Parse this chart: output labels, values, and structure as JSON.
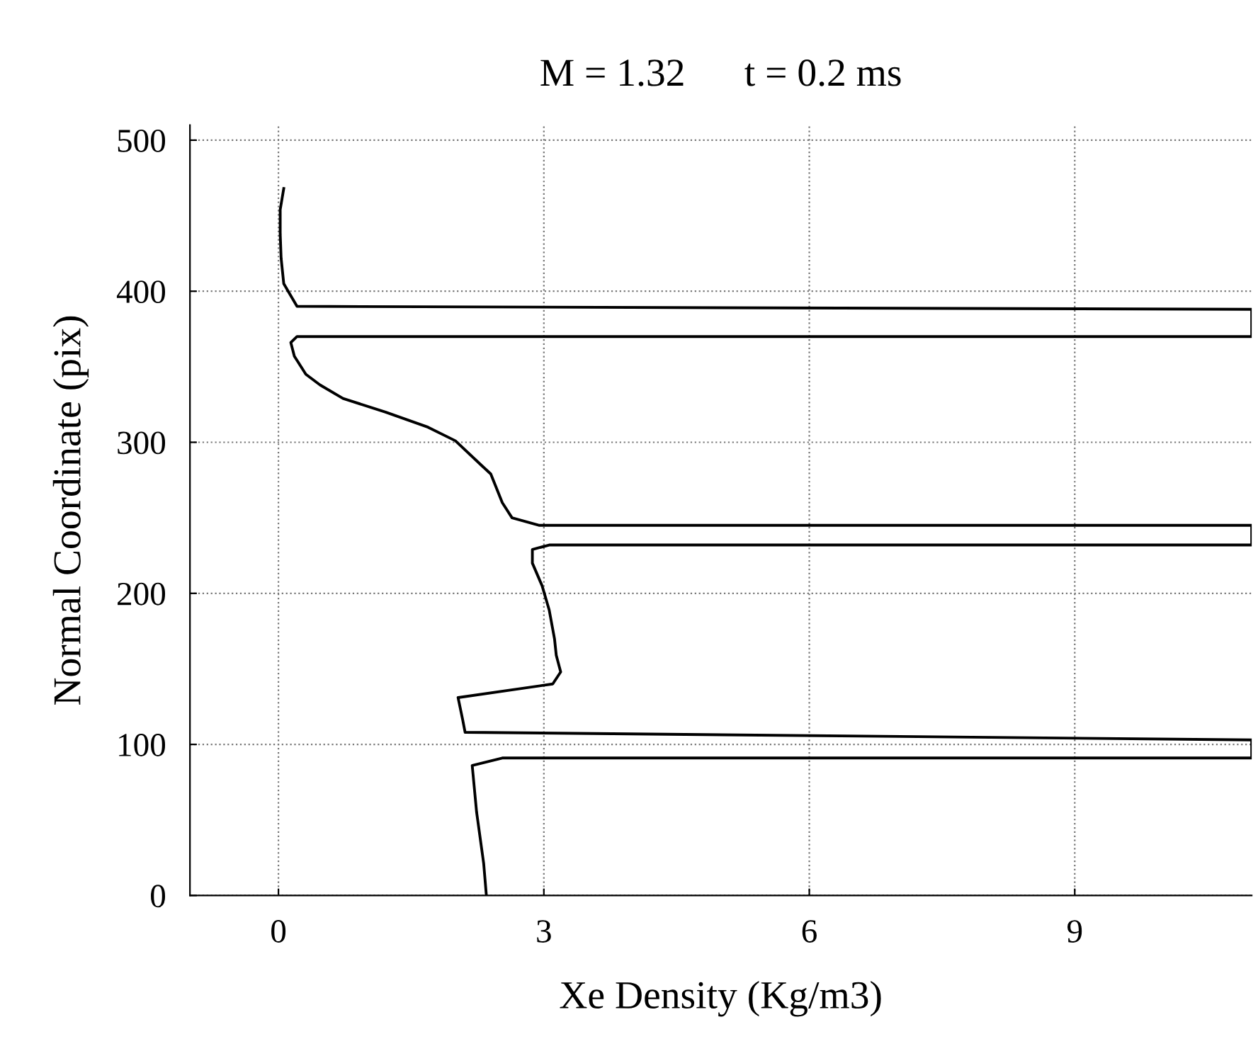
{
  "chart_data": {
    "type": "line",
    "title": "M = 1.32      t = 0.2 ms",
    "xlabel": "Xe Density (Kg/m3)",
    "ylabel": "Normal Coordinate (pix)",
    "xlim": [
      -1,
      11
    ],
    "xticks": [
      0,
      3,
      6,
      9
    ],
    "ylim": [
      0,
      510
    ],
    "yticks": [
      0,
      100,
      200,
      300,
      400,
      500
    ],
    "grid": true,
    "marker": "none",
    "line_style": "solid",
    "series": [
      {
        "color": "#000000",
        "x": [
          2.35,
          2.32,
          2.24,
          2.19,
          2.53,
          11,
          11,
          2.11,
          2.08,
          2.03,
          3.1,
          3.19,
          3.14,
          3.12,
          3.06,
          2.98,
          2.87,
          2.87,
          3.06,
          11,
          11,
          2.95,
          2.64,
          2.53,
          2.4,
          2.29,
          2.0,
          1.69,
          1.21,
          0.73,
          0.47,
          0.31,
          0.18,
          0.14,
          0.21,
          11,
          11,
          0.21,
          0.13,
          0.06,
          0.03,
          0.02,
          0.02,
          0.06
        ],
        "values": [
          0,
          21,
          55,
          86,
          91,
          91,
          103,
          108,
          117,
          131,
          140,
          148,
          159,
          170,
          189,
          205,
          220,
          229,
          232,
          232,
          245,
          245,
          250,
          260,
          279,
          285,
          301,
          310,
          320,
          329,
          338,
          345,
          357,
          366,
          370,
          370,
          388,
          390,
          398,
          405,
          422,
          438,
          454,
          468
        ]
      }
    ]
  }
}
